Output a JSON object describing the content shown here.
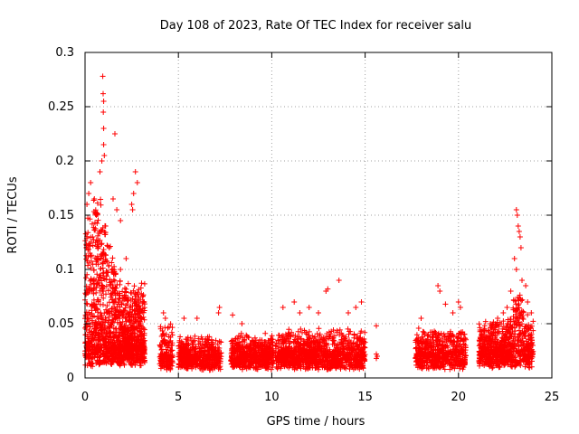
{
  "chart_data": {
    "type": "scatter",
    "title": "Day 108 of 2023, Rate Of TEC Index for receiver salu",
    "xlabel": "GPS time / hours",
    "ylabel": "ROTI / TECUs",
    "xlim": [
      0,
      25
    ],
    "ylim": [
      0,
      0.3
    ],
    "xticks": [
      0,
      5,
      10,
      15,
      20,
      25
    ],
    "yticks": [
      0,
      0.05,
      0.1,
      0.15,
      0.2,
      0.25,
      0.3
    ],
    "xtick_labels": [
      "0",
      "5",
      "10",
      "15",
      "20",
      "25"
    ],
    "ytick_labels": [
      "0",
      "0.05",
      "0.1",
      "0.15",
      "0.2",
      "0.25",
      "0.3"
    ],
    "grid": true,
    "marker": "+",
    "color": "#ff0000",
    "segments": [
      {
        "x0": 0.0,
        "x1": 3.2,
        "base": 0.03,
        "spread": 0.06,
        "n": 1400
      },
      {
        "x0": 4.0,
        "x1": 4.7,
        "base": 0.02,
        "spread": 0.03,
        "n": 160
      },
      {
        "x0": 5.0,
        "x1": 7.3,
        "base": 0.02,
        "spread": 0.02,
        "n": 520
      },
      {
        "x0": 7.8,
        "x1": 10.1,
        "base": 0.022,
        "spread": 0.02,
        "n": 520
      },
      {
        "x0": 10.2,
        "x1": 15.0,
        "base": 0.022,
        "spread": 0.025,
        "n": 1100
      },
      {
        "x0": 17.7,
        "x1": 20.4,
        "base": 0.022,
        "spread": 0.025,
        "n": 600
      },
      {
        "x0": 21.1,
        "x1": 24.0,
        "base": 0.025,
        "spread": 0.03,
        "n": 800
      }
    ],
    "highlights": [
      [
        0.95,
        0.278
      ],
      [
        0.97,
        0.262
      ],
      [
        1.0,
        0.255
      ],
      [
        0.98,
        0.245
      ],
      [
        1.0,
        0.23
      ],
      [
        1.0,
        0.215
      ],
      [
        1.03,
        0.205
      ],
      [
        0.9,
        0.2
      ],
      [
        0.8,
        0.19
      ],
      [
        1.6,
        0.225
      ],
      [
        0.3,
        0.18
      ],
      [
        0.2,
        0.17
      ],
      [
        0.5,
        0.165
      ],
      [
        0.1,
        0.16
      ],
      [
        0.6,
        0.15
      ],
      [
        1.5,
        0.165
      ],
      [
        1.7,
        0.155
      ],
      [
        1.9,
        0.145
      ],
      [
        2.7,
        0.19
      ],
      [
        2.8,
        0.18
      ],
      [
        2.6,
        0.17
      ],
      [
        2.5,
        0.16
      ],
      [
        2.55,
        0.155
      ],
      [
        1.1,
        0.14
      ],
      [
        0.4,
        0.13
      ],
      [
        0.7,
        0.12
      ],
      [
        1.3,
        0.12
      ],
      [
        2.2,
        0.11
      ],
      [
        1.9,
        0.1
      ],
      [
        2.1,
        0.075
      ],
      [
        4.2,
        0.06
      ],
      [
        4.3,
        0.055
      ],
      [
        5.3,
        0.055
      ],
      [
        6.0,
        0.055
      ],
      [
        7.2,
        0.065
      ],
      [
        7.15,
        0.06
      ],
      [
        7.9,
        0.058
      ],
      [
        8.4,
        0.05
      ],
      [
        10.6,
        0.065
      ],
      [
        11.2,
        0.07
      ],
      [
        11.5,
        0.06
      ],
      [
        12.0,
        0.065
      ],
      [
        12.5,
        0.06
      ],
      [
        12.9,
        0.08
      ],
      [
        13.0,
        0.082
      ],
      [
        13.6,
        0.09
      ],
      [
        14.1,
        0.06
      ],
      [
        14.5,
        0.065
      ],
      [
        14.8,
        0.07
      ],
      [
        15.6,
        0.048
      ],
      [
        15.6,
        0.022
      ],
      [
        15.65,
        0.02
      ],
      [
        15.6,
        0.018
      ],
      [
        18.0,
        0.055
      ],
      [
        18.9,
        0.085
      ],
      [
        19.0,
        0.08
      ],
      [
        19.3,
        0.068
      ],
      [
        19.7,
        0.06
      ],
      [
        20.0,
        0.07
      ],
      [
        20.1,
        0.065
      ],
      [
        21.7,
        0.05
      ],
      [
        22.1,
        0.055
      ],
      [
        22.4,
        0.06
      ],
      [
        23.1,
        0.155
      ],
      [
        23.15,
        0.15
      ],
      [
        23.2,
        0.14
      ],
      [
        23.25,
        0.135
      ],
      [
        23.3,
        0.13
      ],
      [
        23.35,
        0.12
      ],
      [
        23.0,
        0.11
      ],
      [
        23.1,
        0.1
      ],
      [
        23.4,
        0.09
      ],
      [
        22.8,
        0.08
      ],
      [
        23.6,
        0.085
      ],
      [
        23.7,
        0.07
      ],
      [
        22.6,
        0.065
      ],
      [
        23.9,
        0.06
      ]
    ]
  }
}
